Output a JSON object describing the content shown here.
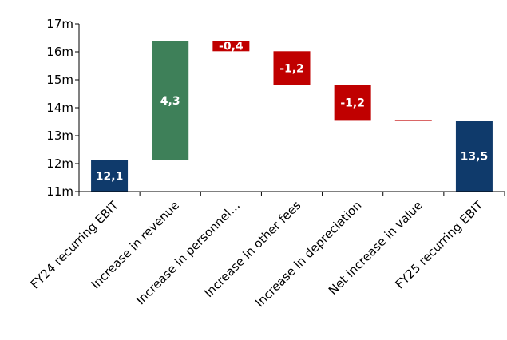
{
  "chart_data": {
    "type": "bar",
    "subtype": "waterfall",
    "title": "",
    "xlabel": "",
    "ylabel": "",
    "ylim": [
      11,
      17
    ],
    "yticks": [
      "11m",
      "12m",
      "13m",
      "14m",
      "15m",
      "16m",
      "17m"
    ],
    "yticks_values": [
      11,
      12,
      13,
      14,
      15,
      16,
      17
    ],
    "grid": false,
    "legend": "none",
    "categories": [
      "FY24 recurring EBIT",
      "Increase in revenue",
      "Increase in personnel…",
      "Increase in other fees",
      "Increase in depreciation",
      "Net increase in value",
      "FY25 recurring EBIT"
    ],
    "bars": [
      {
        "kind": "total",
        "start": 11,
        "end": 12.12,
        "label": "12,1"
      },
      {
        "kind": "increase",
        "start": 12.12,
        "end": 16.4,
        "label": "4,3"
      },
      {
        "kind": "decrease",
        "start": 16.4,
        "end": 16.02,
        "label": "-0,4"
      },
      {
        "kind": "decrease",
        "start": 16.02,
        "end": 14.8,
        "label": "-1,2"
      },
      {
        "kind": "decrease",
        "start": 14.8,
        "end": 13.56,
        "label": "-1,2"
      },
      {
        "kind": "decrease",
        "start": 13.56,
        "end": 13.53,
        "label": ""
      },
      {
        "kind": "total",
        "start": 11,
        "end": 13.53,
        "label": "13,5"
      }
    ],
    "colors": {
      "total": "#0f3a6b",
      "increase": "#3e8059",
      "decrease": "#c00000",
      "axis": "#000000"
    }
  }
}
